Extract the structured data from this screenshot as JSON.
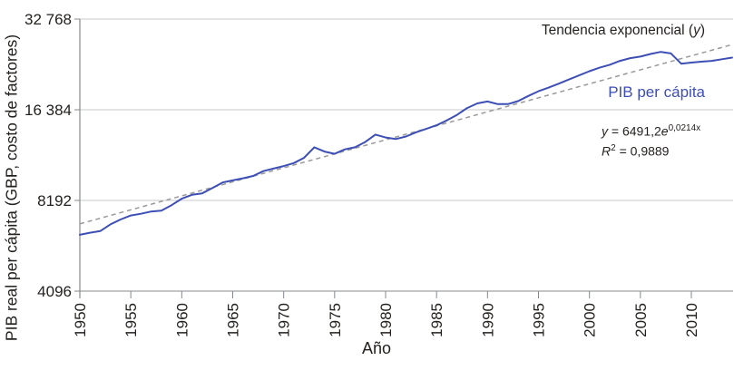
{
  "colors": {
    "line": "#3d4fb5",
    "trend": "#9a9a9a",
    "grid": "#c6c9cc",
    "axis": "#85898d",
    "text": "#24211f",
    "series_label": "#3d4fb5"
  },
  "annotations": {
    "trend_label": {
      "prefix": "Tendencia exponencial (",
      "var": "y",
      "suffix": ")"
    },
    "series_label": "PIB per cápita",
    "equation": {
      "var": "y",
      "mid": " = 6491,2",
      "base": "e",
      "exp": "0,0214x"
    },
    "r_squared": {
      "base": "R",
      "sup": "2",
      "rest": " = 0,9889"
    }
  },
  "chart_data": {
    "type": "line",
    "title": "",
    "xlabel": "Año",
    "ylabel": "PIB real per cápita (GBP, costo de factores)",
    "y_scale": "log2",
    "x_axis": {
      "ticks": [
        1950,
        1955,
        1960,
        1965,
        1970,
        1975,
        1980,
        1985,
        1990,
        1995,
        2000,
        2005,
        2010
      ],
      "range": [
        1950,
        2014
      ]
    },
    "y_axis": {
      "tick_labels": [
        "32 768",
        "16 384",
        "8192",
        "4096"
      ],
      "tick_values": [
        32768,
        16384,
        8192,
        4096
      ],
      "range": [
        4096,
        32768
      ]
    },
    "grid": "horizontal-only",
    "series": [
      {
        "name": "PIB per cápita",
        "start_year": 1950,
        "values": [
          6300,
          6400,
          6480,
          6820,
          7080,
          7300,
          7400,
          7530,
          7580,
          7900,
          8300,
          8550,
          8650,
          9000,
          9400,
          9550,
          9700,
          9880,
          10250,
          10450,
          10650,
          10900,
          11350,
          12300,
          11900,
          11700,
          12100,
          12300,
          12800,
          13550,
          13250,
          13100,
          13350,
          13800,
          14150,
          14550,
          15100,
          15750,
          16600,
          17200,
          17450,
          17100,
          17100,
          17500,
          18200,
          18870,
          19400,
          20000,
          20650,
          21300,
          22000,
          22600,
          23100,
          23800,
          24300,
          24600,
          25100,
          25500,
          25200,
          23300,
          23500,
          23650,
          23800,
          24100,
          24400
        ]
      }
    ],
    "trend": {
      "name": "Tendencia exponencial (y)",
      "style": "dashed",
      "equation": "y = 6491,2e^(0,0214x)",
      "r2": "R² = 0,9889",
      "start_year": 1950,
      "start_value": 6850,
      "end_year": 2014,
      "end_value": 26950
    }
  }
}
